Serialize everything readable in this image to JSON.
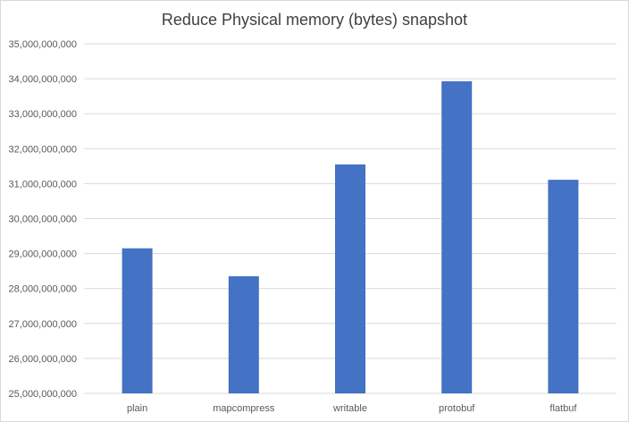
{
  "chart_data": {
    "type": "bar",
    "title": "Reduce Physical memory (bytes) snapshot",
    "xlabel": "",
    "ylabel": "",
    "categories": [
      "plain",
      "mapcompress",
      "writable",
      "protobuf",
      "flatbuf"
    ],
    "values": [
      29150000000,
      28350000000,
      31550000000,
      33930000000,
      31110000000
    ],
    "ylim": [
      25000000000,
      35000000000
    ],
    "yticks": [
      25000000000,
      26000000000,
      27000000000,
      28000000000,
      29000000000,
      30000000000,
      31000000000,
      32000000000,
      33000000000,
      34000000000,
      35000000000
    ],
    "ytick_labels": [
      "25,000,000,000",
      "26,000,000,000",
      "27,000,000,000",
      "28,000,000,000",
      "29,000,000,000",
      "30,000,000,000",
      "31,000,000,000",
      "32,000,000,000",
      "33,000,000,000",
      "34,000,000,000",
      "35,000,000,000"
    ],
    "bar_color": "#4472c4",
    "grid": true,
    "legend": "none"
  }
}
